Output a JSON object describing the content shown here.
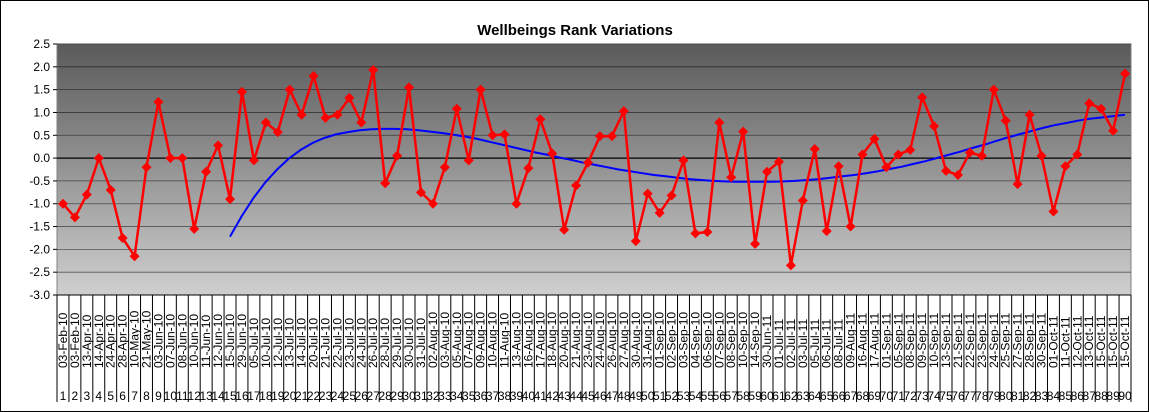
{
  "chart_data": {
    "type": "line",
    "title": "Wellbeings Rank Variations",
    "ylim": [
      -3.0,
      2.5
    ],
    "y_ticks": [
      "2.5",
      "2.0",
      "1.5",
      "1.0",
      "0.5",
      "0.0",
      "-0.5",
      "-1.0",
      "-1.5",
      "-2.0",
      "-2.5",
      "-3.0"
    ],
    "grid": true,
    "legend": "none",
    "colors": {
      "data_line": "#ff0000",
      "trend_line": "#0000ff"
    },
    "x_dates": [
      "03-Feb-10",
      "03-Feb-10",
      "13-Apr-10",
      "14-Apr-10",
      "24-Apr-10",
      "28-Apr-10",
      "10-May-10",
      "21-May-10",
      "03-Jun-10",
      "07-Jun-10",
      "08-Jun-10",
      "10-Jun-10",
      "11-Jun-10",
      "12-Jun-10",
      "15-Jun-10",
      "29-Jun-10",
      "05-Jul-10",
      "10-Jul-10",
      "12-Jul-10",
      "13-Jul-10",
      "14-Jul-10",
      "20-Jul-10",
      "21-Jul-10",
      "22-Jul-10",
      "23-Jul-10",
      "24-Jul-10",
      "26-Jul-10",
      "28-Jul-10",
      "29-Jul-10",
      "30-Jul-10",
      "31-Jul-10",
      "02-Aug-10",
      "03-Aug-10",
      "05-Aug-10",
      "07-Aug-10",
      "09-Aug-10",
      "10-Aug-10",
      "11-Aug-10",
      "13-Aug-10",
      "16-Aug-10",
      "17-Aug-10",
      "18-Aug-10",
      "20-Aug-10",
      "21-Aug-10",
      "23-Aug-10",
      "24-Aug-10",
      "26-Aug-10",
      "27-Aug-10",
      "30-Aug-10",
      "31-Aug-10",
      "01-Sep-10",
      "02-Sep-10",
      "03-Sep-10",
      "04-Sep-10",
      "06-Sep-10",
      "07-Sep-10",
      "08-Sep-10",
      "10-Sep-10",
      "14-Sep-10",
      "30-Jun-11",
      "01-Jul-11",
      "02-Jul-11",
      "03-Jul-11",
      "05-Jul-11",
      "06-Jul-11",
      "08-Jul-11",
      "09-Aug-11",
      "16-Aug-11",
      "17-Aug-11",
      "01-Sep-11",
      "05-Sep-11",
      "08-Sep-11",
      "09-Sep-11",
      "10-Sep-11",
      "13-Sep-11",
      "21-Sep-11",
      "22-Sep-11",
      "23-Sep-11",
      "24-Sep-11",
      "25-Sep-11",
      "27-Sep-11",
      "28-Sep-11",
      "30-Sep-11",
      "01-Oct-11",
      "11-Oct-11",
      "12-Oct-11",
      "13-Oct-11",
      "15-Oct-11",
      "15-Oct-11",
      "15-Oct-11"
    ],
    "x_index": [
      "1",
      "2",
      "3",
      "4",
      "5",
      "6",
      "7",
      "8",
      "9",
      "10",
      "11",
      "12",
      "13",
      "14",
      "15",
      "16",
      "17",
      "18",
      "19",
      "20",
      "21",
      "22",
      "23",
      "24",
      "25",
      "26",
      "27",
      "28",
      "29",
      "30",
      "31",
      "32",
      "33",
      "34",
      "35",
      "36",
      "37",
      "38",
      "39",
      "40",
      "41",
      "42",
      "43",
      "44",
      "45",
      "46",
      "47",
      "48",
      "49",
      "50",
      "51",
      "52",
      "53",
      "54",
      "55",
      "56",
      "57",
      "58",
      "59",
      "60",
      "61",
      "62",
      "63",
      "64",
      "65",
      "66",
      "67",
      "68",
      "69",
      "70",
      "71",
      "72",
      "73",
      "74",
      "75",
      "76",
      "77",
      "78",
      "79",
      "80",
      "81",
      "82",
      "83",
      "84",
      "85",
      "86",
      "87",
      "88",
      "89",
      "90"
    ],
    "series": [
      {
        "values": [
          -1.0,
          -1.3,
          -0.8,
          0.0,
          -0.7,
          -1.75,
          -2.15,
          -0.2,
          1.23,
          0.0,
          0.0,
          -1.55,
          -0.3,
          0.28,
          -0.9,
          1.45,
          -0.05,
          0.78,
          0.57,
          1.5,
          0.95,
          1.8,
          0.88,
          0.95,
          1.32,
          0.78,
          1.93,
          -0.55,
          0.05,
          1.55,
          -0.75,
          -1.0,
          -0.2,
          1.08,
          -0.05,
          1.5,
          0.5,
          0.52,
          -1.0,
          -0.22,
          0.85,
          0.1,
          -1.57,
          -0.6,
          -0.1,
          0.48,
          0.48,
          1.03,
          -1.82,
          -0.78,
          -1.2,
          -0.82,
          -0.05,
          -1.65,
          -1.62,
          0.78,
          -0.42,
          0.58,
          -1.88,
          -0.3,
          -0.08,
          -2.35,
          -0.93,
          0.2,
          -1.6,
          -0.18,
          -1.5,
          0.08,
          0.42,
          -0.2,
          0.08,
          0.18,
          1.33,
          0.7,
          -0.28,
          -0.37,
          0.12,
          0.05,
          1.5,
          0.82,
          -0.57,
          0.95,
          0.05,
          -1.17,
          -0.18,
          0.08,
          1.2,
          1.08,
          0.6,
          1.85
        ]
      },
      {
        "values": [
          -1.72,
          -1.27,
          -0.87,
          -0.53,
          -0.25,
          -0.01,
          0.18,
          0.33,
          0.44,
          0.52,
          0.57,
          0.61,
          0.63,
          0.64,
          0.64,
          0.63,
          0.61,
          0.58,
          0.55,
          0.51,
          0.47,
          0.42,
          0.36,
          0.3,
          0.24,
          0.18,
          0.12,
          0.07,
          0.01,
          -0.04,
          -0.1,
          -0.15,
          -0.2,
          -0.25,
          -0.29,
          -0.33,
          -0.37,
          -0.4,
          -0.43,
          -0.46,
          -0.48,
          -0.5,
          -0.51,
          -0.52,
          -0.52,
          -0.52,
          -0.52,
          -0.51,
          -0.5,
          -0.48,
          -0.46,
          -0.43,
          -0.4,
          -0.37,
          -0.33,
          -0.29,
          -0.24,
          -0.19,
          -0.13,
          -0.07,
          0.0,
          0.07,
          0.14,
          0.22,
          0.29,
          0.37,
          0.45,
          0.52,
          0.59,
          0.66,
          0.72,
          0.77,
          0.82,
          0.86,
          0.89,
          0.92,
          0.95
        ],
        "x_start": 14
      }
    ]
  }
}
